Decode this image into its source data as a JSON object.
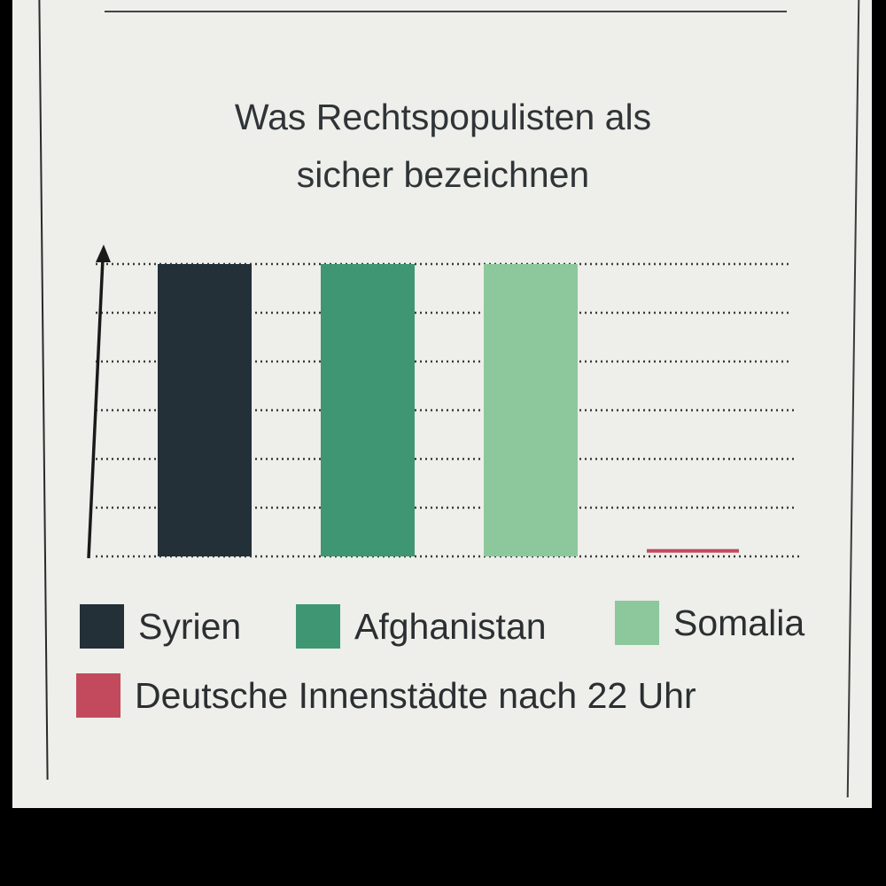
{
  "chart_data": {
    "type": "bar",
    "title": "Was Rechtspopulisten als sicher bezeichnen",
    "title_lines": [
      "Was Rechtspopulisten als",
      "sicher bezeichnen"
    ],
    "categories": [
      "Syrien",
      "Afghanistan",
      "Somalia",
      "Deutsche Innenstädte nach 22 Uhr"
    ],
    "values": [
      6,
      6,
      6,
      0.15
    ],
    "colors": [
      "#243038",
      "#3f9673",
      "#8cc89c",
      "#c24a5c"
    ],
    "ylim": [
      0,
      6
    ],
    "gridlines": 7,
    "grid": "dotted",
    "axis_ticks_shown": false,
    "legend_placement": "bottom",
    "legend": [
      {
        "label": "Syrien",
        "color": "#243038"
      },
      {
        "label": "Afghanistan",
        "color": "#3f9673"
      },
      {
        "label": "Somalia",
        "color": "#8cc89c"
      },
      {
        "label": "Deutsche Innenstädte nach 22 Uhr",
        "color": "#c24a5c"
      }
    ]
  }
}
